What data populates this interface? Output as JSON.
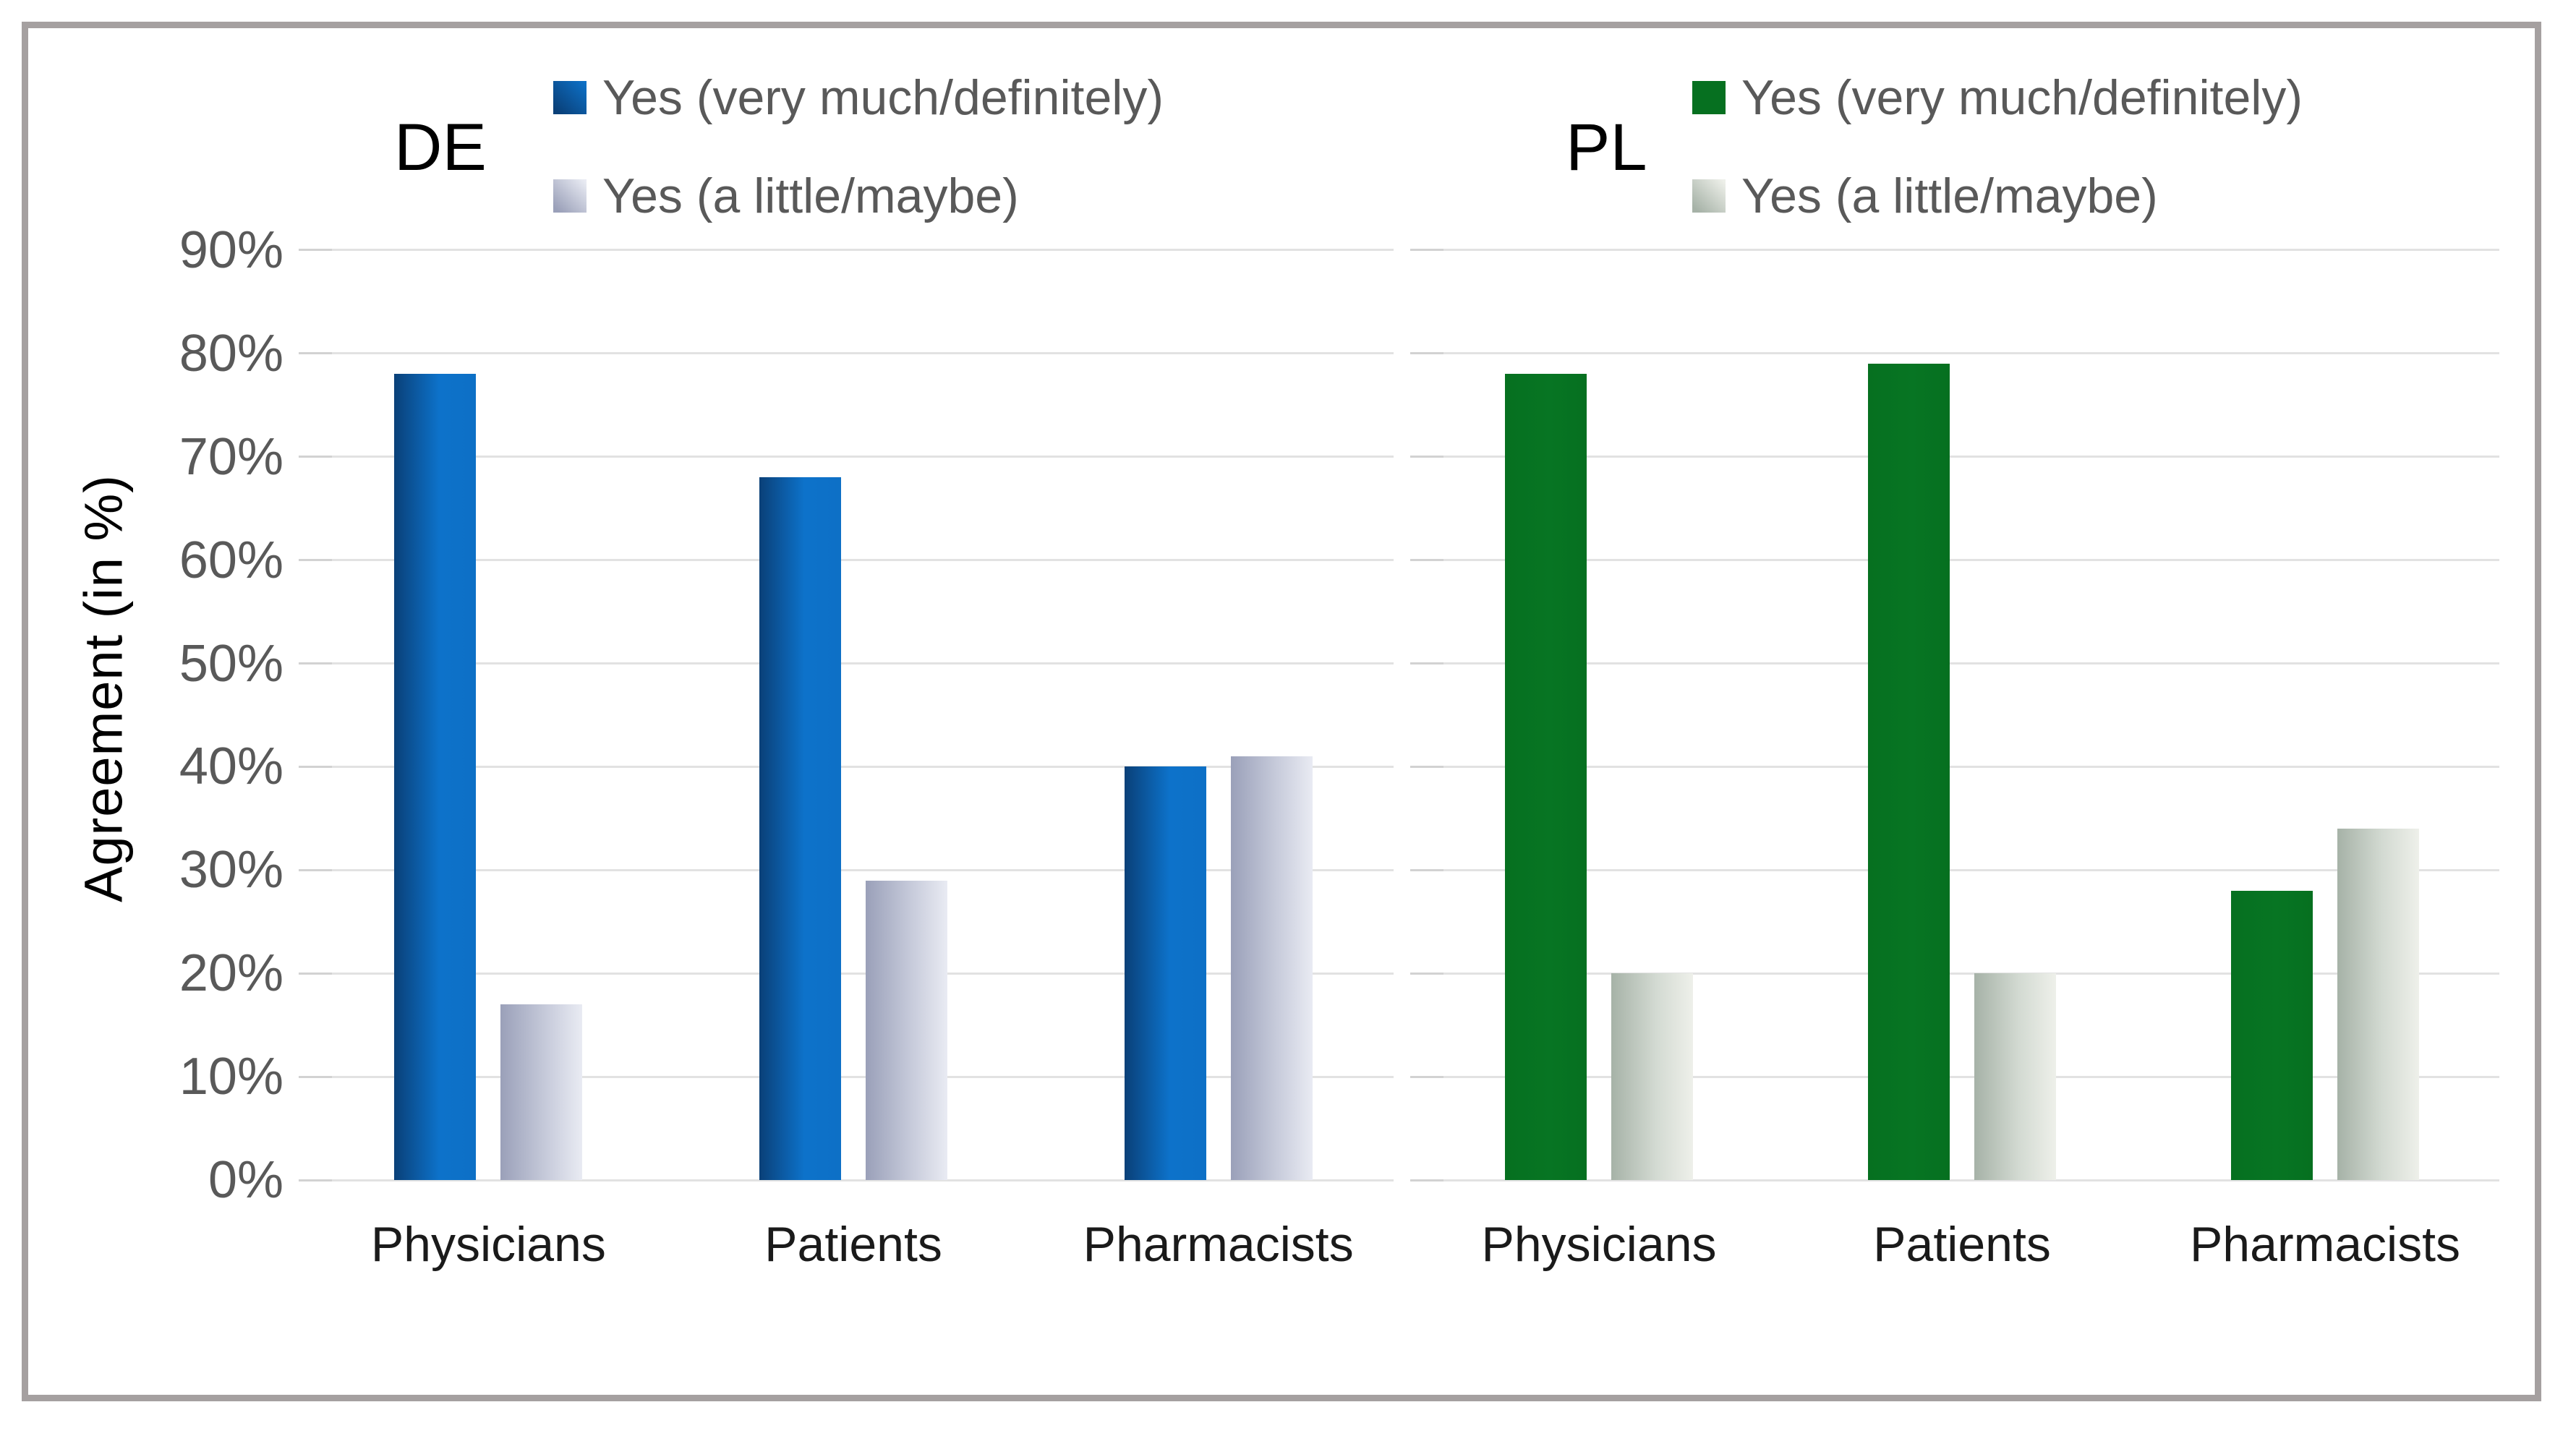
{
  "chart_data": {
    "type": "bar",
    "ylabel": "Agreement  (in %)",
    "ylim": [
      0,
      90
    ],
    "ytick_step": 10,
    "ytick_labels": [
      "0%",
      "10%",
      "20%",
      "30%",
      "40%",
      "50%",
      "60%",
      "70%",
      "80%",
      "90%"
    ],
    "grid": true,
    "legend_position": "top",
    "panels": [
      {
        "title": "DE",
        "categories": [
          "Physicians",
          "Patients",
          "Pharmacists"
        ],
        "series": [
          {
            "name": "Yes (very much/definitely)",
            "values": [
              78,
              68,
              40
            ],
            "color_from": "#0a4078",
            "color_mid": "#0d72ca",
            "color_to": "#0d70c6"
          },
          {
            "name": "Yes (a little/maybe)",
            "values": [
              17,
              29,
              41
            ],
            "color_from": "#9aa0b9",
            "color_mid": "#c6cada",
            "color_to": "#e9ebf3"
          }
        ]
      },
      {
        "title": "PL",
        "categories": [
          "Physicians",
          "Patients",
          "Pharmacists"
        ],
        "series": [
          {
            "name": "Yes (very much/definitely)",
            "values": [
              78,
              79,
              28
            ],
            "color_from": "#067020",
            "color_mid": "#077523",
            "color_to": "#067020"
          },
          {
            "name": "Yes (a little/maybe)",
            "values": [
              20,
              20,
              34
            ],
            "color_from": "#a6b2a7",
            "color_mid": "#d3dad2",
            "color_to": "#eef0ea"
          }
        ]
      }
    ],
    "colors": {
      "gridline": "#e2e2e2",
      "gridline_head": "#d2d2d2",
      "tick_text": "#595959",
      "legend_text": "#595959",
      "category_text": "#1a1a1a",
      "frame_border": "#a5a0a0"
    }
  }
}
